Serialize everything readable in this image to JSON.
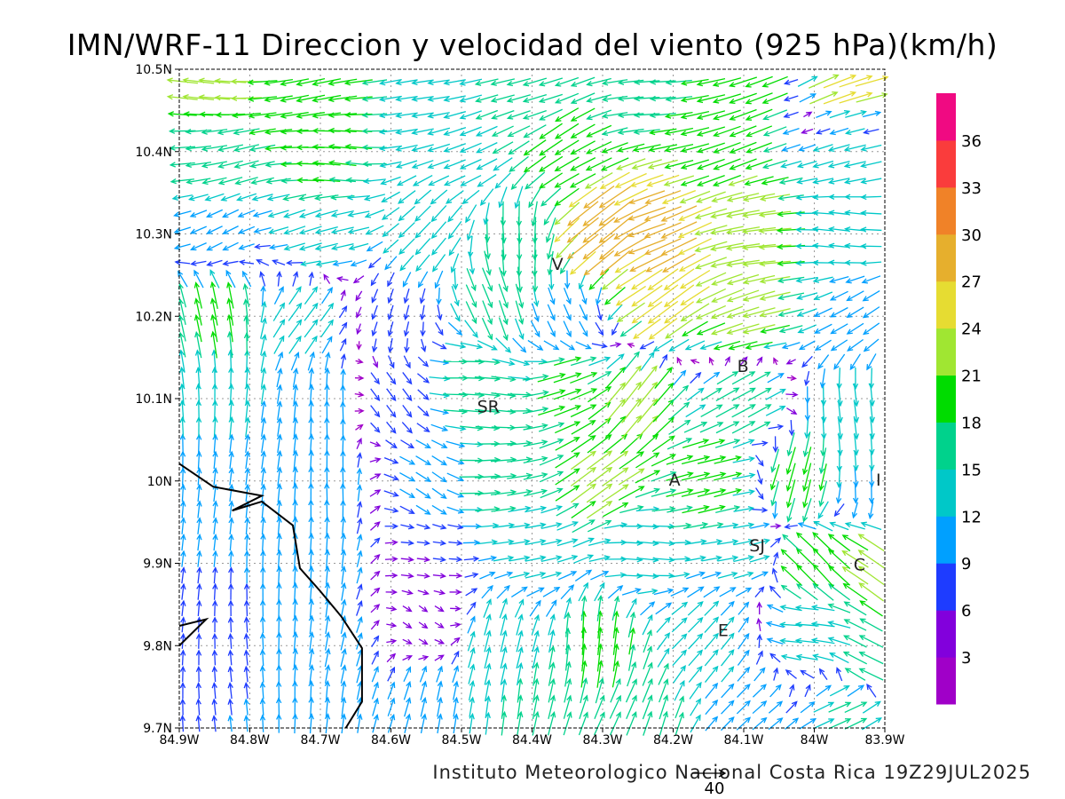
{
  "title": "IMN/WRF-11 Direccion y velocidad del viento (925 hPa)(km/h)",
  "footer": "Instituto Meteorologico Nacional Costa Rica  19Z29JUL2025",
  "reference_vector": {
    "label": "40",
    "speed": 40
  },
  "chart_data": {
    "type": "vector-field",
    "units": "km/h",
    "level": "925 hPa",
    "xlim": [
      -84.9,
      -83.9
    ],
    "ylim": [
      9.7,
      10.5
    ],
    "x_ticks": [
      "84.9W",
      "84.8W",
      "84.7W",
      "84.6W",
      "84.5W",
      "84.4W",
      "84.3W",
      "84.2W",
      "84.1W",
      "84W",
      "83.9W"
    ],
    "y_ticks": [
      "10.5N",
      "10.4N",
      "10.3N",
      "10.2N",
      "10.1N",
      "10N",
      "9.9N",
      "9.8N",
      "9.7N"
    ],
    "grid": true,
    "colorbar": {
      "levels": [
        "3",
        "6",
        "9",
        "12",
        "15",
        "18",
        "21",
        "24",
        "27",
        "30",
        "33",
        "36"
      ],
      "colors": [
        "#A000C8",
        "#8200DC",
        "#1E3CFF",
        "#00A0FF",
        "#00C8C8",
        "#00D28C",
        "#00DC00",
        "#A0E632",
        "#E6DC32",
        "#E6AF2D",
        "#F08228",
        "#FA3C3C",
        "#F00A82"
      ]
    },
    "wind_samples_lon_lat_dir_speed": [
      [
        -84.85,
        10.48,
        180,
        22
      ],
      [
        -84.7,
        10.48,
        185,
        20
      ],
      [
        -84.55,
        10.48,
        195,
        14
      ],
      [
        -84.4,
        10.48,
        190,
        16
      ],
      [
        -84.25,
        10.48,
        190,
        17
      ],
      [
        -84.1,
        10.48,
        195,
        20
      ],
      [
        -83.95,
        10.48,
        20,
        25
      ],
      [
        -84.85,
        10.4,
        190,
        17
      ],
      [
        -84.7,
        10.4,
        175,
        19
      ],
      [
        -84.5,
        10.4,
        200,
        15
      ],
      [
        -84.35,
        10.4,
        210,
        19
      ],
      [
        -84.15,
        10.4,
        195,
        20
      ],
      [
        -83.95,
        10.4,
        200,
        14
      ],
      [
        -84.85,
        10.3,
        200,
        10
      ],
      [
        -84.7,
        10.3,
        200,
        15
      ],
      [
        -84.55,
        10.3,
        225,
        14
      ],
      [
        -84.42,
        10.28,
        270,
        18
      ],
      [
        -84.3,
        10.3,
        225,
        30
      ],
      [
        -84.22,
        10.3,
        200,
        29
      ],
      [
        -84.1,
        10.3,
        185,
        24
      ],
      [
        -83.95,
        10.3,
        180,
        13
      ],
      [
        -84.85,
        10.2,
        95,
        19
      ],
      [
        -84.72,
        10.2,
        60,
        14
      ],
      [
        -84.6,
        10.2,
        250,
        8
      ],
      [
        -84.45,
        10.22,
        290,
        17
      ],
      [
        -84.35,
        10.2,
        300,
        10
      ],
      [
        -84.22,
        10.22,
        210,
        27
      ],
      [
        -84.1,
        10.2,
        200,
        24
      ],
      [
        -83.95,
        10.2,
        210,
        12
      ],
      [
        -84.85,
        10.1,
        90,
        13
      ],
      [
        -84.7,
        10.1,
        90,
        12
      ],
      [
        -84.6,
        10.1,
        300,
        8
      ],
      [
        -84.48,
        10.12,
        0,
        17
      ],
      [
        -84.35,
        10.12,
        20,
        20
      ],
      [
        -84.25,
        10.1,
        45,
        22
      ],
      [
        -84.1,
        10.1,
        35,
        18
      ],
      [
        -83.95,
        10.08,
        270,
        15
      ],
      [
        -84.85,
        10.0,
        90,
        10
      ],
      [
        -84.7,
        10.0,
        85,
        12
      ],
      [
        -84.55,
        10.0,
        330,
        10
      ],
      [
        -84.45,
        10.0,
        10,
        17
      ],
      [
        -84.3,
        10.0,
        30,
        22
      ],
      [
        -84.15,
        10.0,
        20,
        20
      ],
      [
        -84.02,
        10.0,
        250,
        20
      ],
      [
        -83.92,
        10.0,
        270,
        12
      ],
      [
        -84.85,
        9.9,
        90,
        9
      ],
      [
        -84.7,
        9.9,
        80,
        11
      ],
      [
        -84.55,
        9.9,
        0,
        6
      ],
      [
        -84.4,
        9.92,
        5,
        13
      ],
      [
        -84.25,
        9.92,
        0,
        14
      ],
      [
        -84.1,
        9.92,
        10,
        13
      ],
      [
        -84.0,
        9.9,
        130,
        21
      ],
      [
        -83.92,
        9.9,
        150,
        22
      ],
      [
        -84.85,
        9.8,
        90,
        8
      ],
      [
        -84.7,
        9.8,
        80,
        11
      ],
      [
        -84.55,
        9.83,
        330,
        4
      ],
      [
        -84.45,
        9.8,
        70,
        14
      ],
      [
        -84.3,
        9.8,
        90,
        19
      ],
      [
        -84.15,
        9.8,
        45,
        13
      ],
      [
        -84.0,
        9.82,
        175,
        15
      ],
      [
        -83.92,
        9.78,
        160,
        18
      ],
      [
        -84.85,
        9.72,
        90,
        9
      ],
      [
        -84.7,
        9.72,
        90,
        12
      ],
      [
        -84.55,
        9.72,
        75,
        12
      ],
      [
        -84.4,
        9.72,
        80,
        16
      ],
      [
        -84.25,
        9.72,
        70,
        17
      ],
      [
        -84.1,
        9.72,
        40,
        11
      ],
      [
        -83.95,
        9.72,
        30,
        16
      ]
    ],
    "coastline": [
      [
        [
          -84.9,
          10.021
        ],
        [
          -84.852,
          9.993
        ],
        [
          -84.783,
          9.982
        ],
        [
          -84.825,
          9.964
        ],
        [
          -84.783,
          9.975
        ],
        [
          -84.739,
          9.946
        ],
        [
          -84.729,
          9.894
        ],
        [
          -84.701,
          9.867
        ],
        [
          -84.67,
          9.835
        ],
        [
          -84.641,
          9.797
        ],
        [
          -84.641,
          9.732
        ],
        [
          -84.664,
          9.7
        ]
      ],
      [
        [
          -84.9,
          9.824
        ],
        [
          -84.862,
          9.832
        ],
        [
          -84.9,
          9.8
        ]
      ]
    ],
    "cities": [
      {
        "label": "V",
        "lon": -84.364,
        "lat": 10.264
      },
      {
        "label": "SR",
        "lon": -84.462,
        "lat": 10.091
      },
      {
        "label": "B",
        "lon": -84.101,
        "lat": 10.14
      },
      {
        "label": "A",
        "lon": -84.198,
        "lat": 10.002
      },
      {
        "label": "I",
        "lon": -83.909,
        "lat": 10.002
      },
      {
        "label": "SJ",
        "lon": -84.081,
        "lat": 9.922
      },
      {
        "label": "C",
        "lon": -83.936,
        "lat": 9.899
      },
      {
        "label": "E",
        "lon": -84.129,
        "lat": 9.819
      }
    ]
  }
}
